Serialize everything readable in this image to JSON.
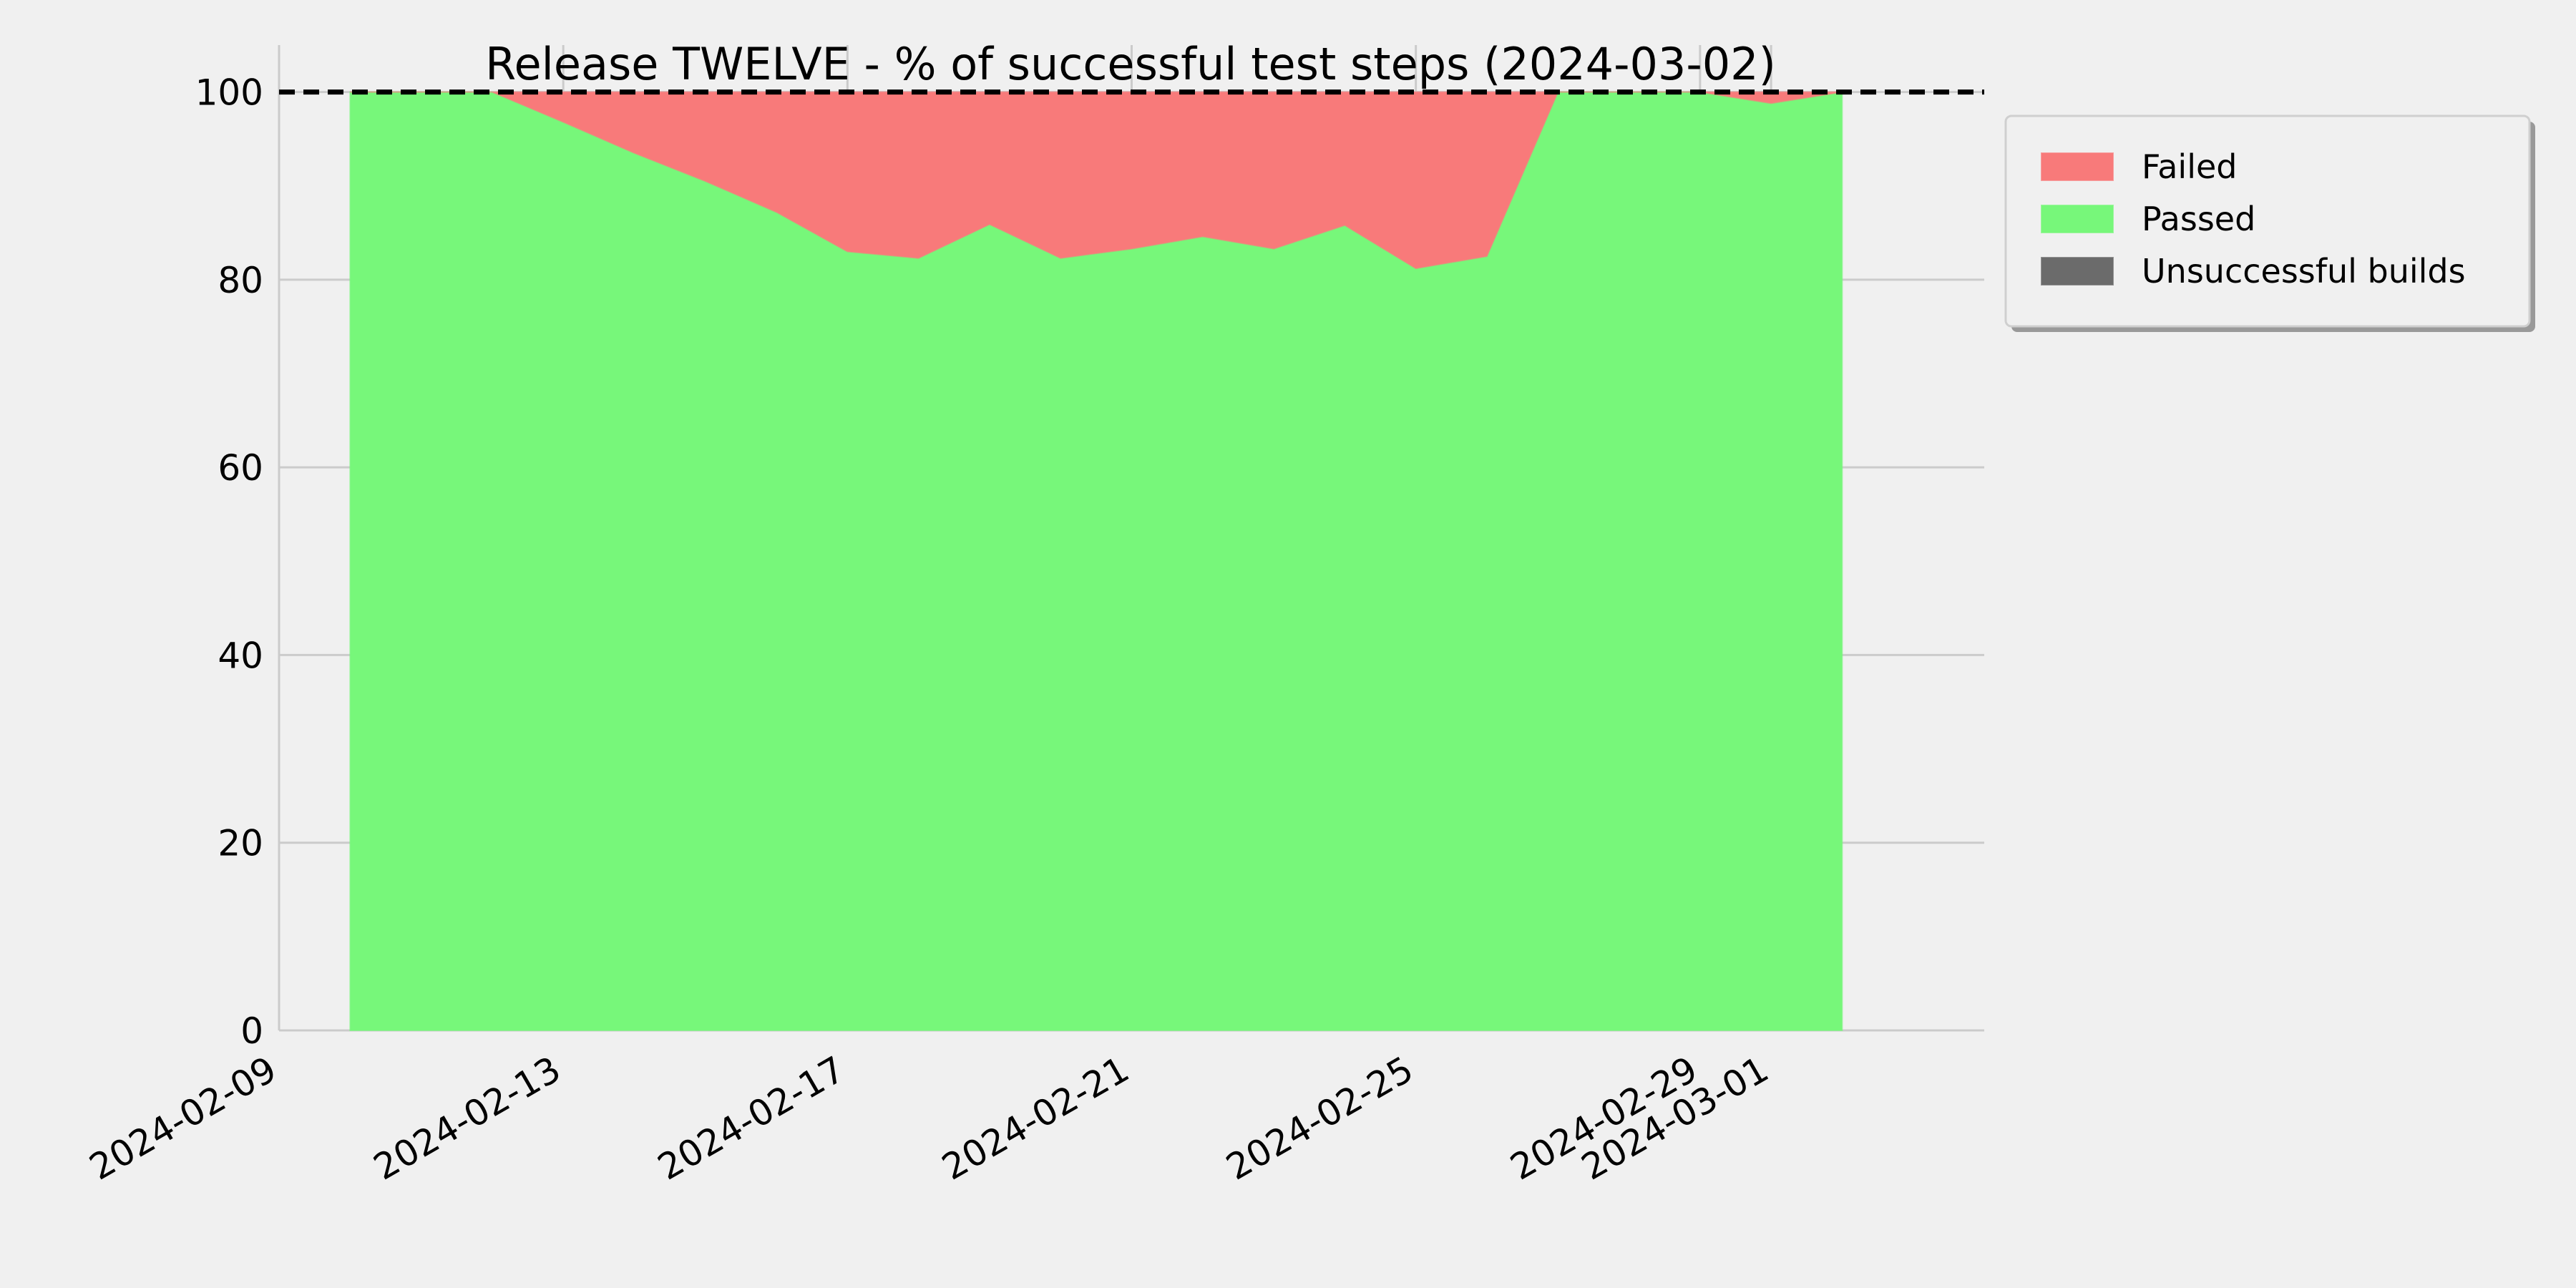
{
  "chart_data": {
    "type": "area",
    "title": "Release TWELVE - % of successful test steps (2024-03-02)",
    "xlabel": "",
    "ylabel": "",
    "xlim": [
      "2024-02-09",
      "2024-03-04"
    ],
    "ylim": [
      0,
      105
    ],
    "x_ticks": [
      "2024-02-09",
      "2024-02-13",
      "2024-02-17",
      "2024-02-21",
      "2024-02-25",
      "2024-02-29",
      "2024-03-01"
    ],
    "y_ticks": [
      0,
      20,
      40,
      60,
      80,
      100
    ],
    "grid": true,
    "reference_line": {
      "y": 100,
      "style": "dashed",
      "color": "#000000"
    },
    "legend_position": "outside-top-right",
    "x": [
      "2024-02-10",
      "2024-02-11",
      "2024-02-12",
      "2024-02-13",
      "2024-02-14",
      "2024-02-15",
      "2024-02-16",
      "2024-02-17",
      "2024-02-18",
      "2024-02-19",
      "2024-02-20",
      "2024-02-21",
      "2024-02-22",
      "2024-02-23",
      "2024-02-24",
      "2024-02-25",
      "2024-02-26",
      "2024-02-27",
      "2024-02-28",
      "2024-02-29",
      "2024-03-01",
      "2024-03-02"
    ],
    "series": [
      {
        "name": "Failed",
        "color": "#f87a7a",
        "values": [
          0,
          0,
          0,
          3.2,
          6.5,
          9.5,
          12.8,
          17,
          17.7,
          14.1,
          17.7,
          16.7,
          15.4,
          16.7,
          14.2,
          18.8,
          17.5,
          0,
          0,
          0,
          1.2,
          0
        ]
      },
      {
        "name": "Passed",
        "color": "#77f77a",
        "values": [
          100,
          100,
          100,
          96.8,
          93.5,
          90.5,
          87.2,
          83,
          82.3,
          85.9,
          82.3,
          83.3,
          84.6,
          83.3,
          85.8,
          81.2,
          82.5,
          100,
          100,
          100,
          98.8,
          100
        ]
      },
      {
        "name": "Unsuccessful builds",
        "color": "#6b6b6b",
        "values": [
          0,
          0,
          0,
          0,
          0,
          0,
          0,
          0,
          0,
          0,
          0,
          0,
          0,
          0,
          0,
          0,
          0,
          0,
          0,
          0,
          0,
          0
        ]
      }
    ]
  }
}
